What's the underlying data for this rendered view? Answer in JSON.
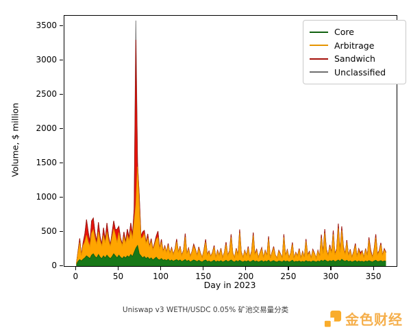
{
  "figure": {
    "caption": "Uniswap v3 WETH/USDC 0.05% 矿池交易量分类"
  },
  "watermark": {
    "text": "金色财经",
    "color": "#f5a93d"
  },
  "legend": {
    "position": "upper-right",
    "items": [
      "Core",
      "Arbitrage",
      "Sandwich",
      "Unclassified"
    ]
  },
  "chart_data": {
    "type": "area",
    "stacked": true,
    "title": "Uniswap v3 WETH/USDC 0.05% 矿池交易量分类",
    "xlabel": "Day in 2023",
    "ylabel": "Volume, $ million",
    "xlim": [
      -14,
      376.5
    ],
    "ylim": [
      0,
      3650
    ],
    "x_ticks": [
      0,
      50,
      100,
      150,
      200,
      250,
      300,
      350
    ],
    "y_ticks": [
      0,
      500,
      1000,
      1500,
      2000,
      2500,
      3000,
      3500
    ],
    "grid": false,
    "legend_position": "upper-right",
    "days": [
      0,
      2,
      4,
      6,
      8,
      10,
      12,
      14,
      16,
      18,
      20,
      22,
      24,
      26,
      28,
      30,
      32,
      34,
      36,
      38,
      40,
      42,
      44,
      46,
      48,
      50,
      52,
      54,
      56,
      58,
      60,
      62,
      64,
      66,
      68,
      70,
      72,
      74,
      76,
      78,
      80,
      82,
      84,
      86,
      88,
      90,
      92,
      94,
      96,
      98,
      100,
      102,
      104,
      106,
      108,
      110,
      112,
      114,
      116,
      118,
      120,
      122,
      124,
      126,
      128,
      130,
      132,
      134,
      136,
      138,
      140,
      142,
      144,
      146,
      148,
      150,
      152,
      154,
      156,
      158,
      160,
      162,
      164,
      166,
      168,
      170,
      172,
      174,
      176,
      178,
      180,
      182,
      184,
      186,
      188,
      190,
      192,
      194,
      196,
      198,
      200,
      202,
      204,
      206,
      208,
      210,
      212,
      214,
      216,
      218,
      220,
      222,
      224,
      226,
      228,
      230,
      232,
      234,
      236,
      238,
      240,
      242,
      244,
      246,
      248,
      250,
      252,
      254,
      256,
      258,
      260,
      262,
      264,
      266,
      268,
      270,
      272,
      274,
      276,
      278,
      280,
      282,
      284,
      286,
      288,
      290,
      292,
      294,
      296,
      298,
      300,
      302,
      304,
      306,
      308,
      310,
      312,
      314,
      316,
      318,
      320,
      322,
      324,
      326,
      328,
      330,
      332,
      334,
      336,
      338,
      340,
      342,
      344,
      346,
      348,
      350,
      352,
      354,
      356,
      358,
      360,
      362,
      364
    ],
    "series": [
      {
        "name": "Core",
        "color": "#187818",
        "line_color": "#10610f",
        "values": [
          15,
          70,
          95,
          75,
          100,
          120,
          150,
          130,
          110,
          160,
          180,
          140,
          120,
          170,
          130,
          110,
          150,
          120,
          160,
          130,
          110,
          140,
          180,
          150,
          120,
          160,
          130,
          110,
          140,
          120,
          150,
          130,
          170,
          140,
          200,
          260,
          300,
          180,
          150,
          120,
          140,
          110,
          130,
          100,
          120,
          90,
          110,
          130,
          100,
          90,
          110,
          85,
          95,
          80,
          100,
          75,
          90,
          70,
          85,
          95,
          75,
          90,
          65,
          80,
          95,
          70,
          85,
          60,
          75,
          90,
          80,
          65,
          85,
          70,
          60,
          80,
          90,
          65,
          75,
          60,
          70,
          85,
          60,
          75,
          65,
          80,
          60,
          70,
          85,
          65,
          75,
          90,
          70,
          60,
          80,
          65,
          85,
          70,
          60,
          75,
          65,
          80,
          60,
          70,
          85,
          65,
          75,
          60,
          70,
          80,
          60,
          75,
          65,
          85,
          60,
          70,
          80,
          65,
          60,
          75,
          70,
          60,
          80,
          65,
          75,
          60,
          70,
          85,
          60,
          70,
          65,
          75,
          60,
          70,
          60,
          80,
          65,
          70,
          60,
          75,
          70,
          60,
          75,
          65,
          85,
          70,
          90,
          75,
          65,
          80,
          70,
          85,
          65,
          75,
          90,
          70,
          100,
          80,
          70,
          85,
          65,
          75,
          60,
          70,
          80,
          60,
          75,
          65,
          70,
          60,
          75,
          65,
          80,
          70,
          60,
          75,
          85,
          65,
          70,
          80,
          65,
          75,
          70
        ]
      },
      {
        "name": "Arbitrage",
        "color": "#ffa500",
        "line_color": "#e59400",
        "values": [
          15,
          130,
          250,
          80,
          200,
          230,
          300,
          220,
          180,
          320,
          350,
          260,
          200,
          330,
          240,
          180,
          300,
          220,
          340,
          240,
          180,
          280,
          360,
          300,
          220,
          330,
          240,
          190,
          290,
          210,
          300,
          240,
          350,
          260,
          450,
          640,
          1150,
          700,
          250,
          300,
          330,
          220,
          280,
          180,
          240,
          150,
          200,
          260,
          320,
          160,
          240,
          130,
          180,
          120,
          200,
          110,
          160,
          100,
          150,
          260,
          120,
          180,
          90,
          140,
          330,
          110,
          160,
          80,
          130,
          200,
          150,
          90,
          170,
          110,
          70,
          140,
          260,
          100,
          130,
          80,
          120,
          190,
          70,
          140,
          90,
          160,
          70,
          120,
          230,
          90,
          130,
          330,
          110,
          70,
          160,
          90,
          400,
          120,
          70,
          140,
          90,
          180,
          70,
          130,
          360,
          100,
          150,
          70,
          120,
          170,
          70,
          140,
          90,
          310,
          60,
          120,
          180,
          90,
          60,
          140,
          100,
          60,
          340,
          90,
          150,
          70,
          110,
          230,
          60,
          120,
          80,
          160,
          60,
          130,
          70,
          280,
          90,
          130,
          60,
          150,
          110,
          60,
          140,
          80,
          330,
          110,
          390,
          150,
          90,
          200,
          120,
          380,
          100,
          160,
          460,
          130,
          420,
          180,
          100,
          260,
          90,
          150,
          70,
          130,
          220,
          80,
          160,
          90,
          140,
          70,
          160,
          90,
          300,
          130,
          70,
          150,
          330,
          100,
          140,
          230,
          90,
          160,
          120
        ]
      },
      {
        "name": "Sandwich",
        "color": "#e8130c",
        "line_color": "#a50f08",
        "values": [
          0,
          20,
          60,
          10,
          40,
          120,
          230,
          150,
          60,
          180,
          170,
          90,
          40,
          140,
          60,
          30,
          110,
          50,
          130,
          60,
          20,
          70,
          120,
          80,
          200,
          90,
          40,
          20,
          70,
          30,
          90,
          50,
          110,
          60,
          180,
          2400,
          60,
          150,
          40,
          80,
          50,
          20,
          60,
          10,
          40,
          10,
          30,
          50,
          90,
          10,
          40,
          5,
          20,
          5,
          30,
          5,
          20,
          5,
          15,
          40,
          5,
          20,
          5,
          15,
          50,
          5,
          20,
          5,
          10,
          30,
          15,
          5,
          25,
          10,
          0,
          15,
          40,
          5,
          15,
          5,
          10,
          25,
          0,
          15,
          5,
          20,
          0,
          10,
          35,
          5,
          15,
          45,
          10,
          0,
          20,
          5,
          50,
          15,
          0,
          15,
          5,
          25,
          0,
          15,
          45,
          10,
          20,
          0,
          10,
          20,
          0,
          15,
          5,
          40,
          0,
          10,
          25,
          5,
          0,
          15,
          10,
          0,
          45,
          5,
          15,
          0,
          10,
          30,
          0,
          10,
          5,
          20,
          0,
          15,
          5,
          35,
          10,
          15,
          0,
          20,
          10,
          0,
          15,
          5,
          45,
          15,
          60,
          20,
          5,
          30,
          10,
          55,
          10,
          20,
          70,
          15,
          60,
          25,
          10,
          35,
          5,
          20,
          0,
          15,
          30,
          5,
          20,
          40,
          15,
          0,
          20,
          5,
          40,
          40,
          0,
          20,
          50,
          10,
          15,
          30,
          5,
          20,
          10
        ]
      },
      {
        "name": "Unclassified",
        "color": "#a8a8a8",
        "line_color": "#6e6e6e",
        "values": [
          0,
          0,
          0,
          0,
          0,
          0,
          0,
          0,
          0,
          0,
          0,
          0,
          0,
          0,
          0,
          0,
          0,
          0,
          0,
          0,
          0,
          0,
          0,
          0,
          0,
          0,
          0,
          0,
          0,
          0,
          0,
          0,
          0,
          0,
          0,
          280,
          0,
          0,
          0,
          0,
          0,
          0,
          0,
          0,
          0,
          0,
          0,
          0,
          0,
          0,
          0,
          0,
          0,
          0,
          0,
          0,
          0,
          0,
          0,
          0,
          0,
          0,
          0,
          0,
          0,
          0,
          0,
          0,
          0,
          0,
          0,
          0,
          0,
          0,
          0,
          0,
          0,
          0,
          0,
          0,
          0,
          0,
          0,
          0,
          0,
          0,
          0,
          0,
          0,
          0,
          0,
          0,
          0,
          0,
          0,
          0,
          0,
          0,
          0,
          0,
          0,
          0,
          0,
          0,
          0,
          0,
          0,
          0,
          0,
          0,
          0,
          0,
          0,
          0,
          0,
          0,
          0,
          0,
          0,
          0,
          0,
          0,
          0,
          0,
          0,
          0,
          0,
          0,
          0,
          0,
          0,
          0,
          0,
          0,
          0,
          0,
          0,
          0,
          0,
          0,
          0,
          0,
          0,
          0,
          0,
          0,
          0,
          0,
          0,
          0,
          0,
          0,
          0,
          0,
          0,
          0,
          0,
          0,
          0,
          0,
          0,
          0,
          0,
          0,
          0,
          0,
          0,
          0,
          0,
          0,
          0,
          0,
          0,
          0,
          0,
          0,
          0,
          0,
          0,
          0,
          0,
          0,
          0
        ]
      }
    ]
  }
}
